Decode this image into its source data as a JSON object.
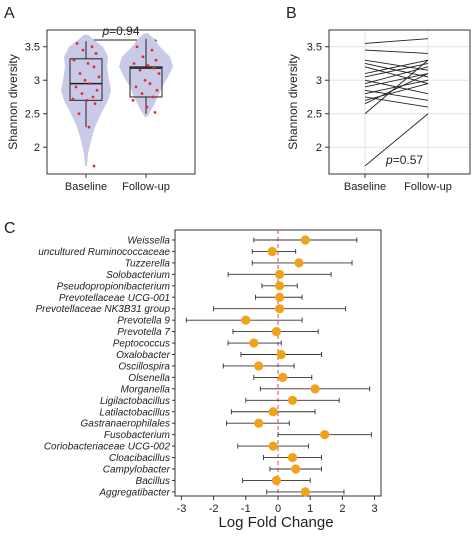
{
  "chart_data": [
    {
      "panel": "A",
      "type": "violin-box",
      "ylabel": "Shannon diversity",
      "categories": [
        "Baseline",
        "Follow-up"
      ],
      "yticks": [
        "2",
        "2.5",
        "3",
        "3.5"
      ],
      "ylim": [
        1.6,
        3.75
      ],
      "annotation": {
        "p_label": "p",
        "p_value": "=0.94"
      },
      "groups": [
        {
          "name": "Baseline",
          "box": {
            "q1": 2.7,
            "median": 2.95,
            "q3": 3.32,
            "whisker_low": 2.3,
            "whisker_high": 3.58
          },
          "points": [
            3.55,
            3.5,
            3.45,
            3.4,
            3.3,
            3.25,
            3.2,
            3.1,
            3.05,
            3.0,
            2.95,
            2.9,
            2.85,
            2.8,
            2.75,
            2.72,
            2.7,
            2.65,
            2.5,
            2.3,
            1.72
          ]
        },
        {
          "name": "Follow-up",
          "box": {
            "q1": 2.75,
            "median": 3.18,
            "q3": 3.2,
            "whisker_low": 2.5,
            "whisker_high": 3.62
          },
          "points": [
            3.5,
            3.45,
            3.35,
            3.3,
            3.25,
            3.22,
            3.18,
            3.15,
            3.1,
            3.0,
            2.95,
            2.9,
            2.85,
            2.8,
            2.75,
            2.7,
            2.6,
            2.52
          ]
        }
      ]
    },
    {
      "panel": "B",
      "type": "paired-line",
      "ylabel": "Shannon diversity",
      "categories": [
        "Baseline",
        "Follow-up"
      ],
      "yticks": [
        "2",
        "2.5",
        "3",
        "3.5"
      ],
      "ylim": [
        1.6,
        3.75
      ],
      "annotation": {
        "p_label": "p",
        "p_value": "=0.57"
      },
      "pairs": [
        [
          3.55,
          3.62
        ],
        [
          3.45,
          3.4
        ],
        [
          3.3,
          3.15
        ],
        [
          3.25,
          3.05
        ],
        [
          3.2,
          2.95
        ],
        [
          3.1,
          3.3
        ],
        [
          3.05,
          3.25
        ],
        [
          3.0,
          2.8
        ],
        [
          2.95,
          3.2
        ],
        [
          2.9,
          3.1
        ],
        [
          2.85,
          2.7
        ],
        [
          2.8,
          3.0
        ],
        [
          2.75,
          2.6
        ],
        [
          2.7,
          2.95
        ],
        [
          2.65,
          3.1
        ],
        [
          2.5,
          3.3
        ],
        [
          1.72,
          2.5
        ]
      ]
    },
    {
      "panel": "C",
      "type": "forest",
      "xlabel": "Log Fold Change",
      "xticks": [
        "-3",
        "-2",
        "-1",
        "0",
        "1",
        "2",
        "3"
      ],
      "xlim": [
        -3.2,
        3.2
      ],
      "point_color": "#F0A21B",
      "ref_line_color": "#E14B4B",
      "rows": [
        {
          "label": "Weissella",
          "value": 0.85,
          "low": -0.75,
          "high": 2.45
        },
        {
          "label": "uncultured Ruminococcaceae",
          "value": -0.18,
          "low": -0.8,
          "high": 0.55
        },
        {
          "label": "Tuzzerella",
          "value": 0.65,
          "low": -0.8,
          "high": 2.3
        },
        {
          "label": "Solobacterium",
          "value": 0.05,
          "low": -1.55,
          "high": 1.65
        },
        {
          "label": "Pseudopropionibacterium",
          "value": 0.05,
          "low": -0.5,
          "high": 0.6
        },
        {
          "label": "Prevotellaceae UCG-001",
          "value": 0.05,
          "low": -0.7,
          "high": 0.75
        },
        {
          "label": "Prevotellaceae NK3B31 group",
          "value": 0.05,
          "low": -2.0,
          "high": 2.1
        },
        {
          "label": "Prevotella 9",
          "value": -1.0,
          "low": -2.85,
          "high": 0.75
        },
        {
          "label": "Prevotella 7",
          "value": -0.05,
          "low": -1.4,
          "high": 1.25
        },
        {
          "label": "Peptococcus",
          "value": -0.75,
          "low": -1.55,
          "high": 0.1
        },
        {
          "label": "Oxalobacter",
          "value": 0.1,
          "low": -1.15,
          "high": 1.35
        },
        {
          "label": "Oscillospira",
          "value": -0.6,
          "low": -1.7,
          "high": 0.5
        },
        {
          "label": "Olsenella",
          "value": 0.15,
          "low": -0.75,
          "high": 1.05
        },
        {
          "label": "Morganella",
          "value": 1.15,
          "low": -0.55,
          "high": 2.85
        },
        {
          "label": "Ligilactobacillus",
          "value": 0.45,
          "low": -1.0,
          "high": 1.9
        },
        {
          "label": "Latilactobacillus",
          "value": -0.15,
          "low": -1.45,
          "high": 1.15
        },
        {
          "label": "Gastranaerophilales",
          "value": -0.6,
          "low": -1.6,
          "high": 0.35
        },
        {
          "label": "Fusobacterium",
          "value": 1.45,
          "low": 0.0,
          "high": 2.9
        },
        {
          "label": "Coriobacteriaceae UCG-002",
          "value": -0.15,
          "low": -1.25,
          "high": 0.95
        },
        {
          "label": "Cloacibacillus",
          "value": 0.45,
          "low": -0.45,
          "high": 1.35
        },
        {
          "label": "Campylobacter",
          "value": 0.55,
          "low": -0.25,
          "high": 1.35
        },
        {
          "label": "Bacillus",
          "value": -0.05,
          "low": -1.1,
          "high": 1.0
        },
        {
          "label": "Aggregatibacter",
          "value": 0.85,
          "low": -0.35,
          "high": 2.05
        }
      ]
    }
  ],
  "panel_labels": {
    "a": "A",
    "b": "B",
    "c": "C"
  },
  "colors": {
    "violin": "#C9C9E8",
    "dot": "#E8292E",
    "box_stroke": "#222222"
  }
}
